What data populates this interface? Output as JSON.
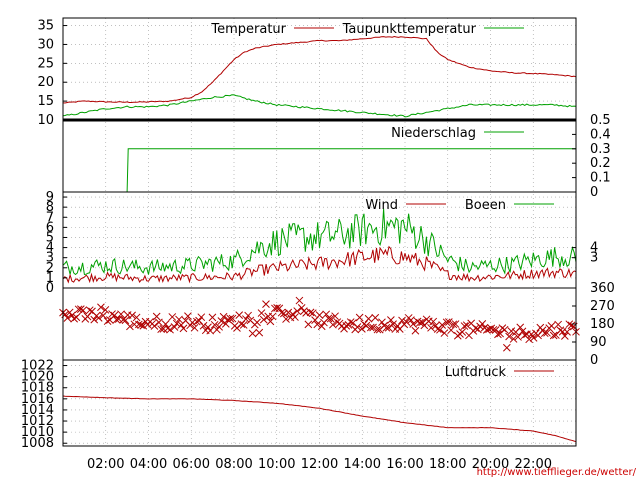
{
  "credit": "http://www.tiefflieger.de/wetter/",
  "colors": {
    "red": "#b00000",
    "green": "#00a000",
    "grid": "#9a9a9a"
  },
  "chart_data": {
    "x_ticks": [
      "02:00",
      "04:00",
      "06:00",
      "08:00",
      "10:00",
      "12:00",
      "14:00",
      "16:00",
      "18:00",
      "20:00",
      "22:00"
    ],
    "x_range_hours": [
      0,
      24
    ],
    "panels": [
      {
        "id": "temp",
        "type": "line",
        "yticks": [
          "10",
          "15",
          "20",
          "25",
          "30",
          "35"
        ],
        "ylim": [
          10,
          37
        ],
        "series": [
          {
            "name": "Temperatur",
            "color": "#b00000",
            "x": [
              0,
              1,
              2,
              3,
              4,
              5,
              5.5,
              6,
              6.5,
              7,
              7.5,
              8,
              8.5,
              9,
              10,
              11,
              12,
              13,
              14,
              15,
              16,
              17,
              17.5,
              18,
              19,
              20,
              21,
              22,
              23,
              24
            ],
            "y": [
              14.5,
              15,
              14.8,
              14.7,
              14.8,
              15,
              15.5,
              16,
              17.5,
              20,
              23,
              26,
              28,
              29,
              30,
              30.5,
              31,
              31,
              31.5,
              32,
              32,
              31.5,
              28,
              26,
              24,
              23,
              22.5,
              22.3,
              22,
              21.5
            ]
          },
          {
            "name": "Taupunkttemperatur",
            "color": "#00a000",
            "x": [
              0,
              1,
              2,
              3,
              4,
              5,
              6,
              7,
              8,
              9,
              10,
              11,
              12,
              13,
              14,
              15,
              16,
              17,
              18,
              19,
              20,
              21,
              22,
              23,
              24
            ],
            "y": [
              11,
              12,
              13,
              13.5,
              13.5,
              14,
              15,
              16,
              16.5,
              15,
              14,
              13.5,
              13,
              12.5,
              12,
              11.5,
              11,
              12,
              13,
              14,
              14,
              14,
              14,
              14,
              13.5
            ]
          }
        ]
      },
      {
        "id": "rain",
        "type": "line",
        "yticks_right": [
          "0",
          "0.1",
          "0.2",
          "0.3",
          "0.4",
          "0.5"
        ],
        "ylim": [
          0,
          0.5
        ],
        "series": [
          {
            "name": "Niederschlag",
            "color": "#00a000",
            "x": [
              0,
              3,
              3.05,
              24
            ],
            "y": [
              0,
              0,
              0.3,
              0.3
            ]
          }
        ]
      },
      {
        "id": "wind",
        "type": "line",
        "yticks": [
          "0",
          "1",
          "2",
          "3",
          "4",
          "5",
          "6",
          "7",
          "8",
          "9"
        ],
        "yticks_right": [
          "3",
          "4"
        ],
        "ylim": [
          0,
          9.5
        ],
        "series": [
          {
            "name": "Wind",
            "color": "#b00000",
            "x": [
              0,
              2,
              4,
              6,
              8,
              9,
              10,
              11,
              12,
              13,
              14,
              15,
              16,
              17,
              18,
              19,
              20,
              21,
              22,
              23,
              24
            ],
            "y": [
              0.8,
              1,
              0.8,
              0.9,
              1,
              1.5,
              1.8,
              2,
              2.2,
              2.5,
              2.8,
              3,
              2.8,
              2.2,
              1.2,
              0.9,
              1,
              1.1,
              1.3,
              1.4,
              1.3
            ]
          },
          {
            "name": "Boeen",
            "color": "#00a000",
            "x": [
              0,
              2,
              4,
              6,
              8,
              9,
              10,
              11,
              12,
              13,
              14,
              15,
              16,
              17,
              18,
              19,
              20,
              21,
              22,
              23,
              24
            ],
            "y": [
              1.8,
              2,
              1.8,
              2,
              2.4,
              3.5,
              4.2,
              4.5,
              4.6,
              4.8,
              5.2,
              5.5,
              5.5,
              4.3,
              2.5,
              1.8,
              2,
              2.1,
              2.5,
              2.8,
              2.7
            ]
          }
        ]
      },
      {
        "id": "direction",
        "type": "scatter",
        "yticks_right": [
          "0",
          "90",
          "180",
          "270",
          "360"
        ],
        "ylim": [
          0,
          360
        ],
        "series": [
          {
            "name": "",
            "color": "#b00000",
            "x": [
              0,
              0.5,
              1,
              1.5,
              2,
              2.5,
              3,
              3.5,
              4,
              4.5,
              5,
              5.5,
              6,
              6.5,
              7,
              7.5,
              8,
              8.5,
              9,
              9.5,
              10,
              10.5,
              11,
              11.5,
              12,
              12.5,
              13,
              13.5,
              14,
              14.5,
              15,
              15.5,
              16,
              16.5,
              17,
              17.5,
              18,
              18.5,
              19,
              19.5,
              20,
              20.5,
              21,
              21.5,
              22,
              22.5,
              23,
              23.5,
              24
            ],
            "y": [
              225,
              225,
              220,
              225,
              225,
              215,
              200,
              190,
              190,
              185,
              185,
              190,
              190,
              185,
              180,
              185,
              190,
              200,
              210,
              225,
              230,
              240,
              235,
              210,
              200,
              190,
              185,
              180,
              180,
              185,
              180,
              190,
              185,
              180,
              175,
              175,
              165,
              160,
              150,
              145,
              150,
              140,
              130,
              135,
              140,
              145,
              150,
              155,
              150
            ]
          }
        ]
      },
      {
        "id": "pressure",
        "type": "line",
        "yticks": [
          "1008",
          "1010",
          "1012",
          "1014",
          "1016",
          "1018",
          "1020",
          "1022"
        ],
        "ylim": [
          1007.5,
          1023
        ],
        "series": [
          {
            "name": "Luftdruck",
            "color": "#b00000",
            "x": [
              0,
              2,
              4,
              6,
              8,
              10,
              12,
              14,
              16,
              18,
              20,
              22,
              23,
              24
            ],
            "y": [
              1016.5,
              1016.2,
              1016,
              1016,
              1015.7,
              1015.2,
              1014.3,
              1012.9,
              1011.7,
              1010.8,
              1010.8,
              1010.2,
              1009.4,
              1008.3
            ]
          }
        ]
      }
    ]
  }
}
